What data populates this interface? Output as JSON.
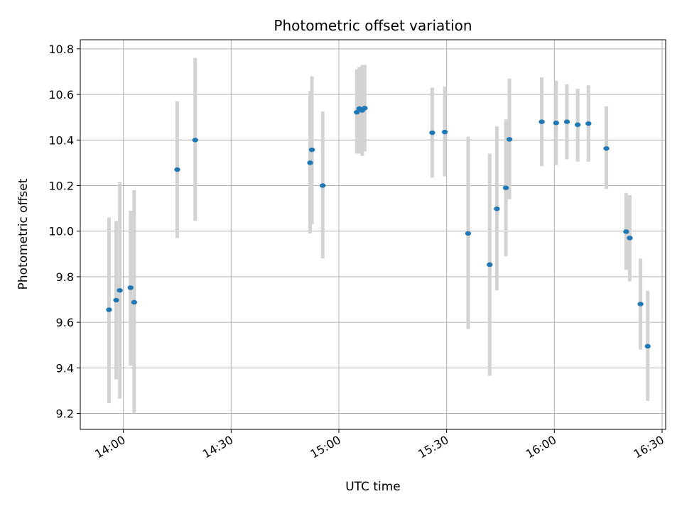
{
  "chart_data": {
    "type": "scatter",
    "title": "Photometric offset variation",
    "xlabel": "UTC time",
    "ylabel": "Photometric offset",
    "x_ticks": [
      {
        "time": "14:00",
        "label": "14:00"
      },
      {
        "time": "14:30",
        "label": "14:30"
      },
      {
        "time": "15:00",
        "label": "15:00"
      },
      {
        "time": "15:30",
        "label": "15:30"
      },
      {
        "time": "16:00",
        "label": "16:00"
      },
      {
        "time": "16:30",
        "label": "16:30"
      }
    ],
    "y_ticks": [
      9.2,
      9.4,
      9.6,
      9.8,
      10.0,
      10.2,
      10.4,
      10.6,
      10.8
    ],
    "xlim": [
      "13:48",
      "16:31"
    ],
    "ylim": [
      9.13,
      10.84
    ],
    "grid": true,
    "point_color": "#1f77b4",
    "errorbar_color": "#d3d3d3",
    "points": [
      {
        "time": "13:56",
        "y": 9.655,
        "ylo": 9.245,
        "yhi": 10.06
      },
      {
        "time": "13:58",
        "y": 9.697,
        "ylo": 9.35,
        "yhi": 10.045
      },
      {
        "time": "13:59",
        "y": 9.74,
        "ylo": 9.265,
        "yhi": 10.215
      },
      {
        "time": "14:02",
        "y": 9.752,
        "ylo": 9.41,
        "yhi": 10.09
      },
      {
        "time": "14:03",
        "y": 9.688,
        "ylo": 9.2,
        "yhi": 10.18
      },
      {
        "time": "14:15",
        "y": 10.27,
        "ylo": 9.97,
        "yhi": 10.57
      },
      {
        "time": "14:20",
        "y": 10.4,
        "ylo": 10.045,
        "yhi": 10.76
      },
      {
        "time": "14:52",
        "y": 10.3,
        "ylo": 9.99,
        "yhi": 10.615
      },
      {
        "time": "14:52.5",
        "y": 10.357,
        "ylo": 10.03,
        "yhi": 10.68
      },
      {
        "time": "14:55.5",
        "y": 10.2,
        "ylo": 9.88,
        "yhi": 10.525
      },
      {
        "time": "15:05",
        "y": 10.522,
        "ylo": 10.34,
        "yhi": 10.71
      },
      {
        "time": "15:05.7",
        "y": 10.538,
        "ylo": 10.34,
        "yhi": 10.72
      },
      {
        "time": "15:06.5",
        "y": 10.53,
        "ylo": 10.33,
        "yhi": 10.73
      },
      {
        "time": "15:07.2",
        "y": 10.54,
        "ylo": 10.35,
        "yhi": 10.73
      },
      {
        "time": "15:26",
        "y": 10.432,
        "ylo": 10.235,
        "yhi": 10.63
      },
      {
        "time": "15:29.5",
        "y": 10.435,
        "ylo": 10.24,
        "yhi": 10.635
      },
      {
        "time": "15:36",
        "y": 9.99,
        "ylo": 9.57,
        "yhi": 10.415
      },
      {
        "time": "15:42",
        "y": 9.853,
        "ylo": 9.365,
        "yhi": 10.34
      },
      {
        "time": "15:44",
        "y": 10.098,
        "ylo": 9.74,
        "yhi": 10.46
      },
      {
        "time": "15:46.5",
        "y": 10.19,
        "ylo": 9.89,
        "yhi": 10.49
      },
      {
        "time": "15:47.5",
        "y": 10.403,
        "ylo": 10.14,
        "yhi": 10.67
      },
      {
        "time": "15:56.5",
        "y": 10.48,
        "ylo": 10.285,
        "yhi": 10.675
      },
      {
        "time": "16:00.5",
        "y": 10.475,
        "ylo": 10.29,
        "yhi": 10.66
      },
      {
        "time": "16:03.5",
        "y": 10.48,
        "ylo": 10.315,
        "yhi": 10.645
      },
      {
        "time": "16:06.5",
        "y": 10.467,
        "ylo": 10.305,
        "yhi": 10.625
      },
      {
        "time": "16:09.5",
        "y": 10.472,
        "ylo": 10.305,
        "yhi": 10.64
      },
      {
        "time": "16:14.5",
        "y": 10.363,
        "ylo": 10.185,
        "yhi": 10.548
      },
      {
        "time": "16:20",
        "y": 9.998,
        "ylo": 9.83,
        "yhi": 10.168
      },
      {
        "time": "16:21",
        "y": 9.97,
        "ylo": 9.78,
        "yhi": 10.158
      },
      {
        "time": "16:24",
        "y": 9.68,
        "ylo": 9.48,
        "yhi": 9.88
      },
      {
        "time": "16:26",
        "y": 9.495,
        "ylo": 9.255,
        "yhi": 9.738
      }
    ]
  }
}
